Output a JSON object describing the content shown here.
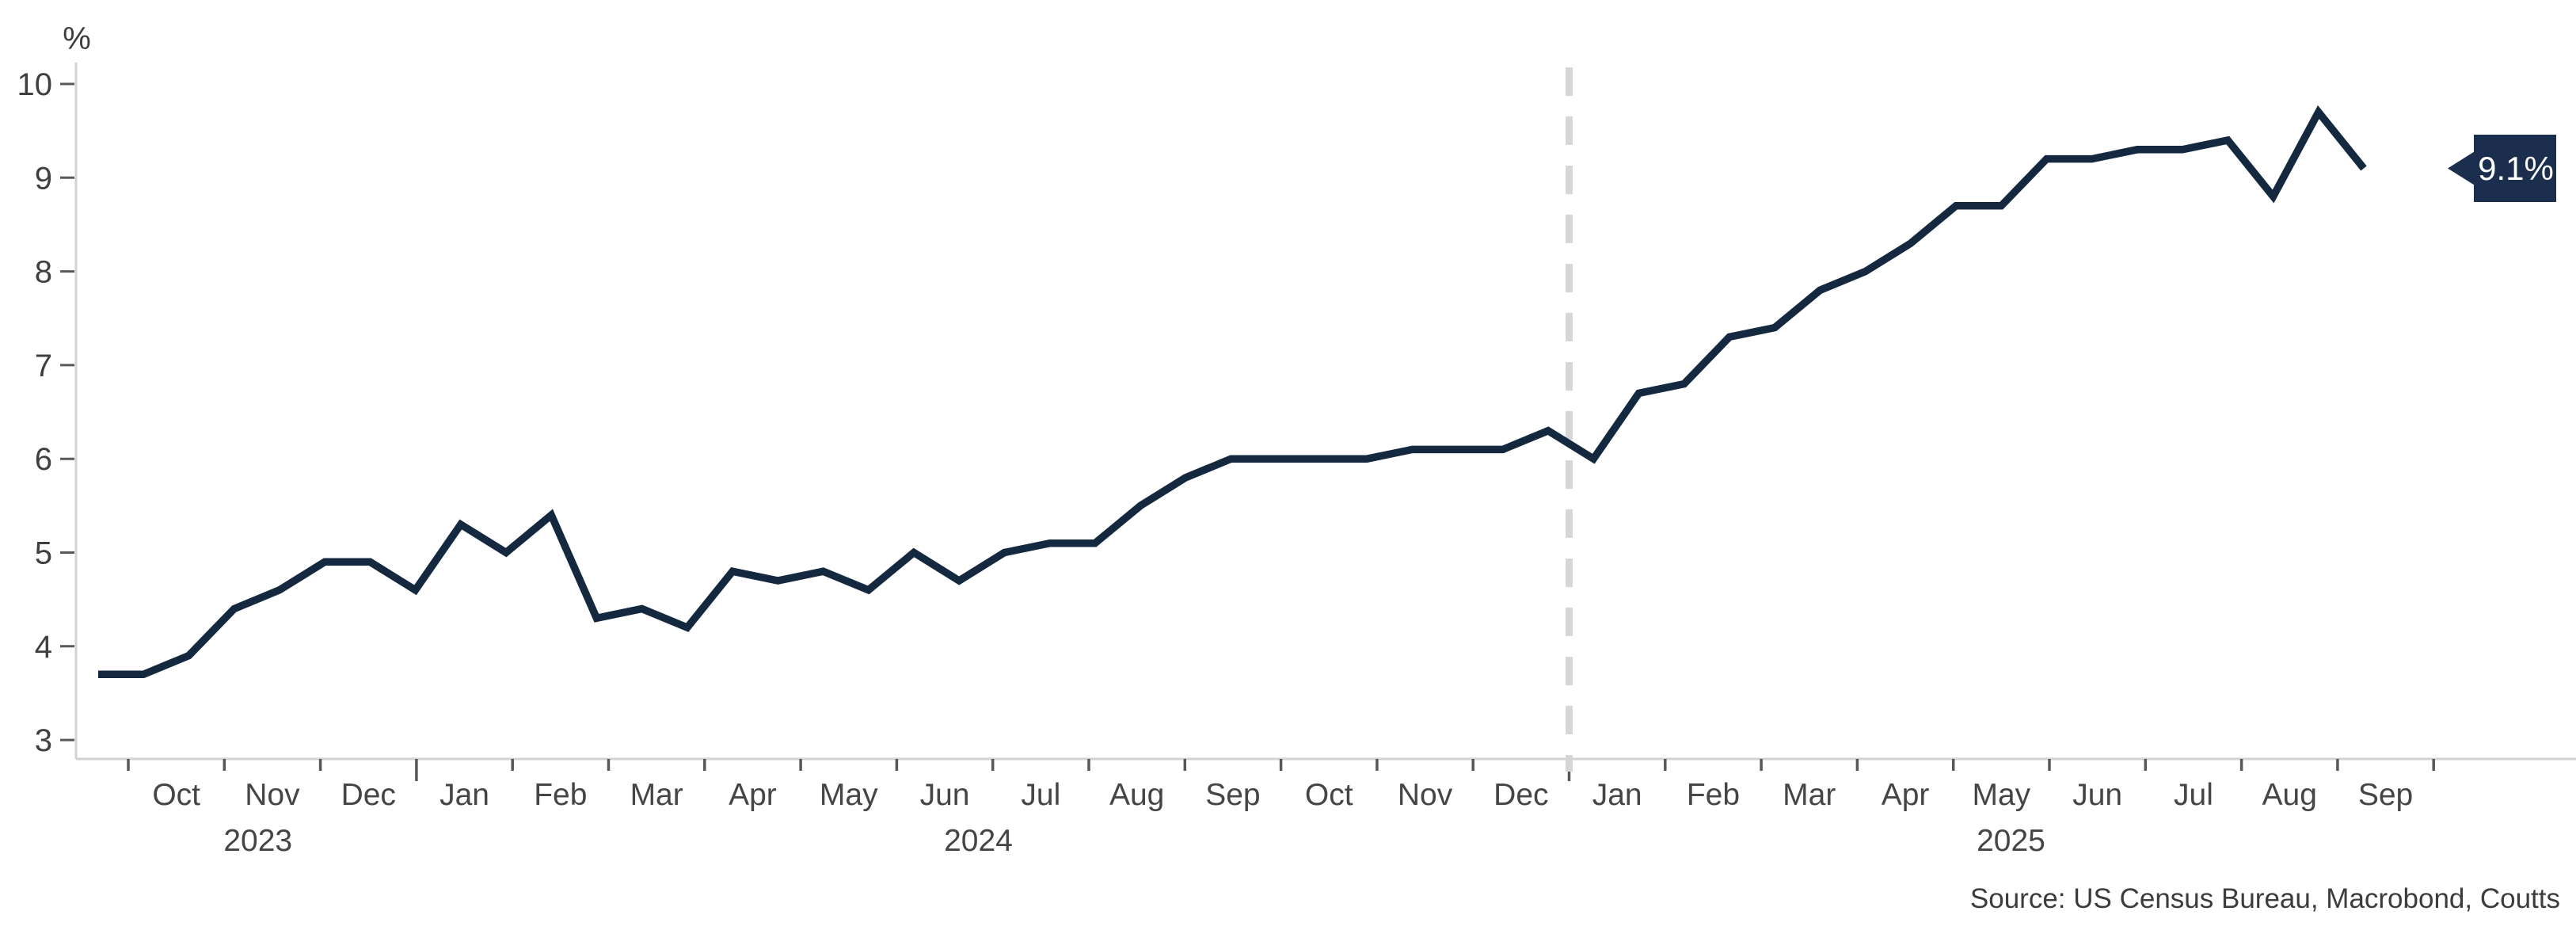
{
  "chart_data": {
    "type": "line",
    "title": "",
    "xlabel": "",
    "ylabel": "%",
    "ylim": [
      3,
      10
    ],
    "y_ticks": [
      "10",
      "9",
      "8",
      "7",
      "6",
      "5",
      "4",
      "3"
    ],
    "grid": false,
    "legend": "none",
    "x_months": [
      "Oct",
      "Nov",
      "Dec",
      "Jan",
      "Feb",
      "Mar",
      "Apr",
      "May",
      "Jun",
      "Jul",
      "Aug",
      "Sep",
      "Oct",
      "Nov",
      "Dec",
      "Jan",
      "Feb",
      "Mar",
      "Apr",
      "May",
      "Jun",
      "Jul",
      "Aug",
      "Sep"
    ],
    "year_labels": [
      {
        "label": "2023",
        "month_index": 0.85
      },
      {
        "label": "2024",
        "month_index": 8.35
      },
      {
        "label": "2025",
        "month_index": 19.1
      }
    ],
    "frequency": "semi-monthly (about two observations per month), mid-Sep 2023 through Sep 2025",
    "series": [
      {
        "name": "value (%)",
        "color": "#142840",
        "values": [
          3.7,
          3.7,
          3.9,
          4.4,
          4.6,
          4.9,
          4.9,
          4.6,
          5.3,
          5.0,
          5.4,
          4.3,
          4.4,
          4.2,
          4.8,
          4.7,
          4.8,
          4.6,
          5.0,
          4.7,
          5.0,
          5.1,
          5.1,
          5.5,
          5.8,
          6.0,
          6.0,
          6.0,
          6.0,
          6.1,
          6.1,
          6.1,
          6.3,
          6.0,
          6.7,
          6.8,
          7.3,
          7.4,
          7.8,
          8.0,
          8.3,
          8.7,
          8.7,
          9.2,
          9.2,
          9.3,
          9.3,
          9.4,
          8.8,
          9.7,
          9.1
        ]
      }
    ],
    "divider": {
      "description": "vertical dashed gray line at the Dec 2024 / Jan 2025 boundary",
      "at_month_boundary": 15,
      "color": "#d6d6d6",
      "style": "dashed"
    },
    "annotation": {
      "label": "9.1%",
      "value": 9.1,
      "box_color": "#1b2e4e",
      "text_color": "#ffffff",
      "position": "right edge, aligned with last data value"
    },
    "source": "Source: US Census Bureau, Macrobond, Coutts"
  },
  "colors": {
    "line_navy": "#142840",
    "callout_navy": "#1b2e4e",
    "axis_gray": "#d2d2d2",
    "dashed_gray": "#d6d6d6",
    "tick_gray": "#585858",
    "text_gray": "#3f3f3f",
    "background": "#ffffff"
  }
}
